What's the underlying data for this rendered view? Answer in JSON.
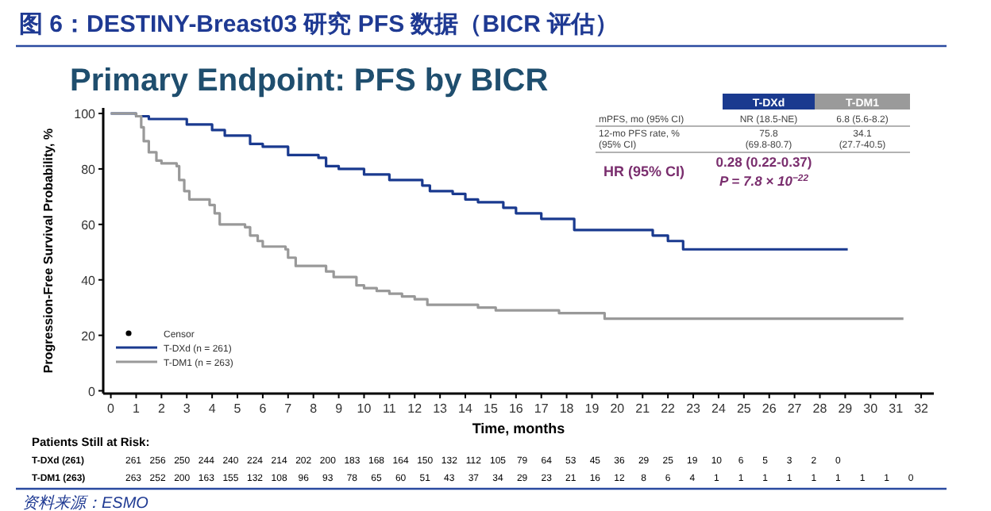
{
  "chart_data": {
    "type": "step",
    "title": "图 6：DESTINY-Breast03 研究 PFS 数据（BICR 评估）",
    "subtitle": "Primary Endpoint: PFS by BICR",
    "xlabel": "Time, months",
    "ylabel": "Progression-Free Survival Probability, %",
    "xlim": [
      -0.3,
      32.5
    ],
    "xticks": [
      0,
      1,
      2,
      3,
      4,
      5,
      6,
      7,
      8,
      9,
      10,
      11,
      12,
      13,
      14,
      15,
      16,
      17,
      18,
      19,
      20,
      21,
      22,
      23,
      24,
      25,
      26,
      27,
      28,
      29,
      30,
      31,
      32
    ],
    "ylim": [
      -1,
      102
    ],
    "yticks": [
      0,
      20,
      40,
      60,
      80,
      100
    ],
    "legend": "bottom left",
    "grid": false,
    "series": [
      {
        "name": "T-DXd (n = 261)",
        "color": "#1a3a8f",
        "x": [
          0,
          1,
          1.5,
          3,
          4,
          4.5,
          5.5,
          6,
          7,
          8.2,
          8.5,
          9,
          10,
          11,
          12.3,
          12.6,
          13.5,
          14,
          14.5,
          15.5,
          16,
          17,
          18.3,
          21.4,
          22,
          22.6,
          29.1
        ],
        "values": [
          100,
          99,
          98,
          96,
          94,
          92,
          89,
          88,
          85,
          84,
          81,
          80,
          78,
          76,
          74,
          72,
          71,
          69,
          68,
          66,
          64,
          62,
          58,
          56,
          54,
          51,
          51
        ]
      },
      {
        "name": "T-DM1 (n = 263)",
        "color": "#999999",
        "x": [
          0,
          1,
          1.2,
          1.3,
          1.5,
          1.8,
          2,
          2.6,
          2.7,
          2.9,
          3.1,
          3.9,
          4.1,
          4.3,
          5.3,
          5.5,
          5.8,
          6,
          6.9,
          7,
          7.3,
          8.2,
          8.5,
          8.8,
          9.5,
          9.7,
          10,
          10.5,
          11,
          11.5,
          12,
          12.5,
          14.5,
          15.2,
          17.7,
          19.5,
          31.3
        ],
        "values": [
          100,
          99,
          95,
          90,
          86,
          83,
          82,
          81,
          76,
          72,
          69,
          67,
          64,
          60,
          59,
          56,
          54,
          52,
          51,
          48,
          45,
          45,
          43,
          41,
          41,
          38,
          37,
          36,
          35,
          34,
          33,
          31,
          30,
          29,
          28,
          26,
          26
        ]
      }
    ],
    "annotations": [
      "Censor",
      "T-DXd",
      "T-DM1",
      "mPFS, mo (95% CI)",
      "NR (18.5-NE)",
      "6.8 (5.6-8.2)",
      "12-mo PFS rate, %",
      "(95% CI)",
      "75.8",
      "(69.8-80.7)",
      "34.1",
      "(27.7-40.5)",
      "HR (95% CI)",
      "0.28 (0.22-0.37)",
      "P = 7.8 × 10$^{−22}$",
      "Patients Still at Risk:",
      "T-DXd (261)",
      "261 256 250 244 240 224 214 202 200 183 168 164 150 132 112 105 79 64 53 45 36 29 25 19 10 6 5 3 2 0",
      "T-DM1 (263)",
      "263 252 200 163 155 132 108 96 93 78 65 60 51 43 37 34 29 23 21 16 12 8 6 4 1 1 1 1 1 1 1 1 0",
      "资料来源：ESMO"
    ]
  }
}
